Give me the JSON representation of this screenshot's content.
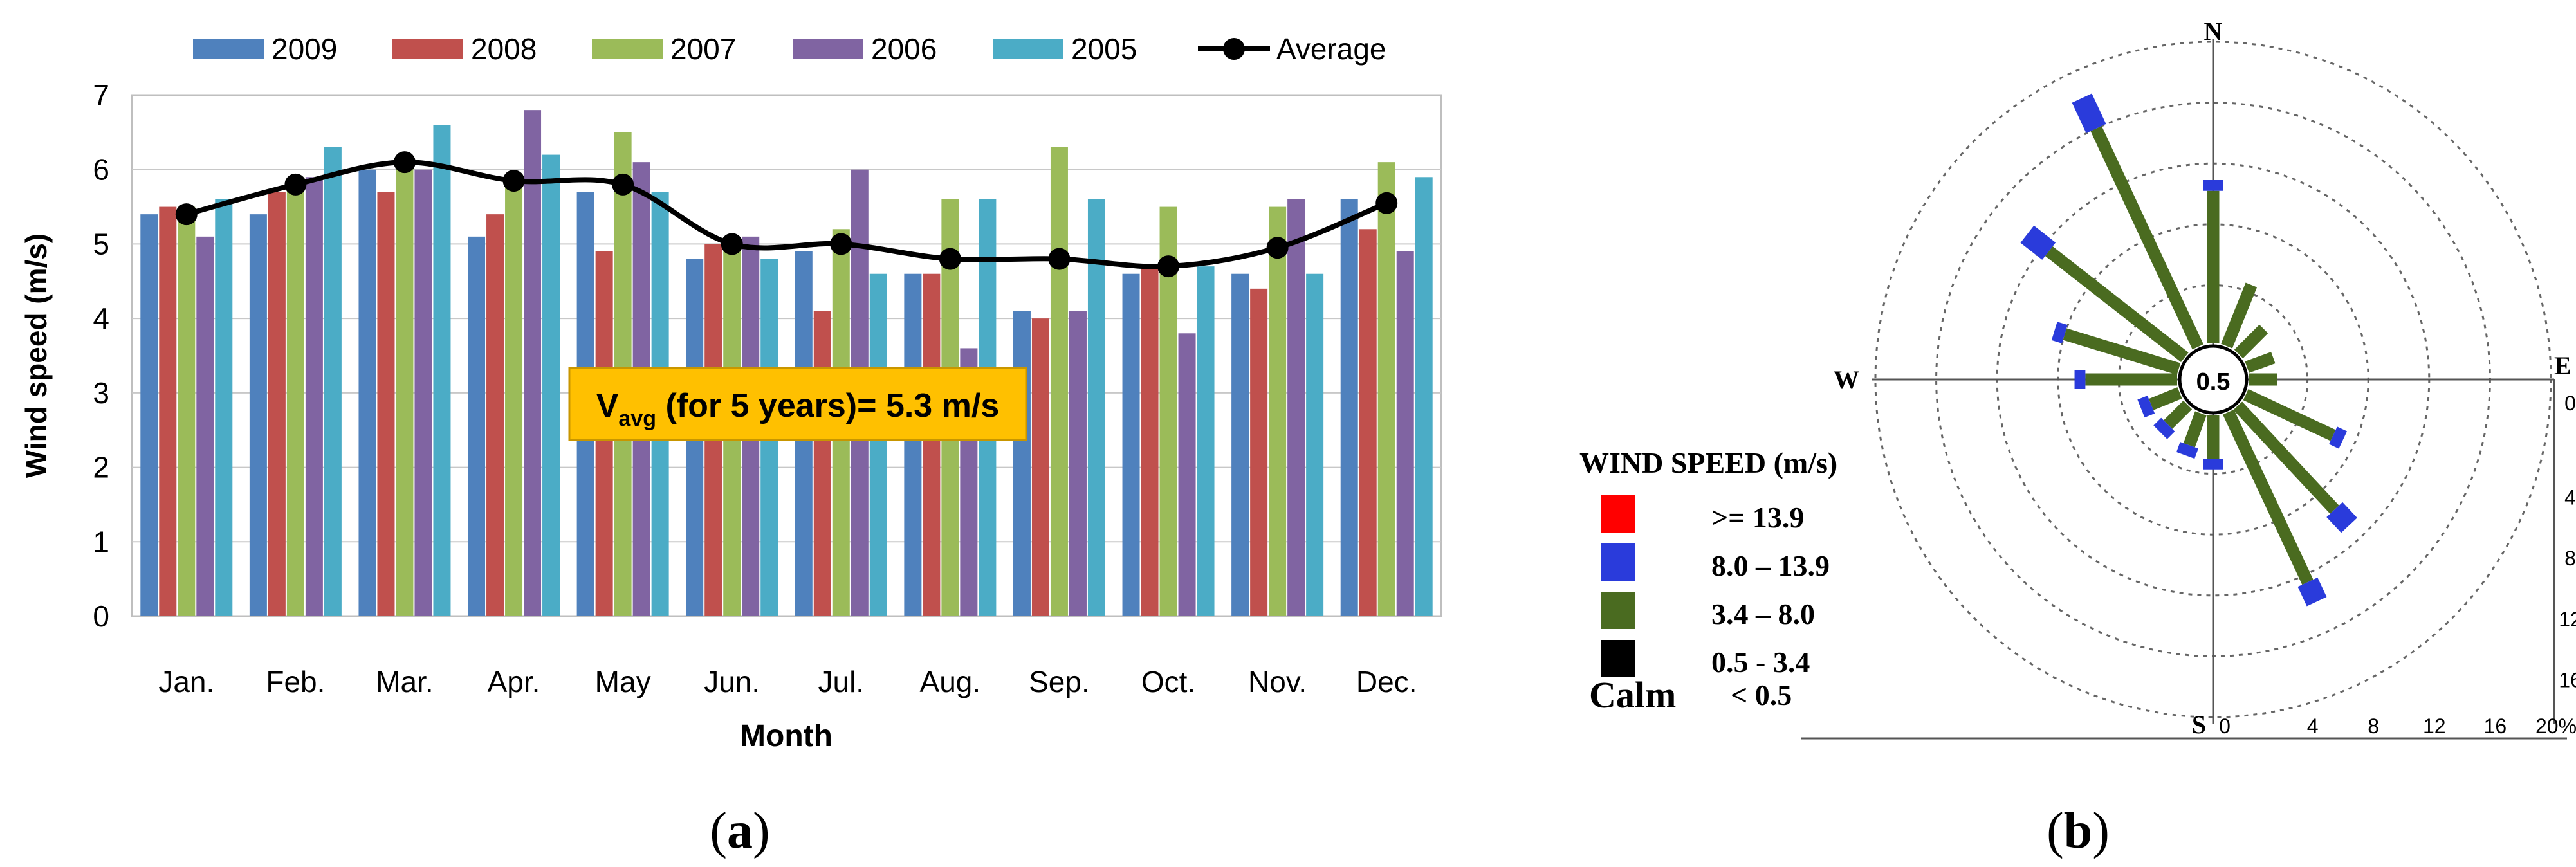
{
  "panel_labels": {
    "a": "a",
    "b": "b"
  },
  "chart_data": [
    {
      "type": "bar",
      "id": "monthly-wind-speed",
      "title": "",
      "xlabel": "Month",
      "ylabel": "Wind speed (m/s)",
      "ylim": [
        0,
        7
      ],
      "yticks": [
        "0",
        "1",
        "2",
        "3",
        "4",
        "5",
        "6",
        "7"
      ],
      "grid": true,
      "legend_position": "top",
      "categories": [
        "Jan.",
        "Feb.",
        "Mar.",
        "Apr.",
        "May",
        "Jun.",
        "Jul.",
        "Aug.",
        "Sep.",
        "Oct.",
        "Nov.",
        "Dec."
      ],
      "series": [
        {
          "name": "2009",
          "color": "#4F81BD",
          "values": [
            5.4,
            5.4,
            6.0,
            5.1,
            5.7,
            4.8,
            4.9,
            4.6,
            4.1,
            4.6,
            4.6,
            5.6
          ]
        },
        {
          "name": "2008",
          "color": "#C0504D",
          "values": [
            5.5,
            5.7,
            5.7,
            5.4,
            4.9,
            5.0,
            4.1,
            4.6,
            4.0,
            4.7,
            4.4,
            5.2
          ]
        },
        {
          "name": "2007",
          "color": "#9BBB59",
          "values": [
            5.5,
            5.8,
            6.1,
            5.8,
            6.5,
            4.9,
            5.2,
            5.6,
            6.3,
            5.5,
            5.5,
            6.1
          ]
        },
        {
          "name": "2006",
          "color": "#8064A2",
          "values": [
            5.1,
            5.9,
            6.0,
            6.8,
            6.1,
            5.1,
            6.0,
            3.6,
            4.1,
            3.8,
            5.6,
            4.9
          ]
        },
        {
          "name": "2005",
          "color": "#4BACC6",
          "values": [
            5.6,
            6.3,
            6.6,
            6.2,
            5.7,
            4.8,
            4.6,
            5.6,
            5.6,
            4.7,
            4.6,
            5.9
          ]
        }
      ],
      "average": {
        "name": "Average",
        "color": "#000000",
        "values": [
          5.4,
          5.8,
          6.1,
          5.85,
          5.8,
          5.0,
          5.0,
          4.8,
          4.8,
          4.7,
          4.95,
          5.55
        ]
      },
      "annotation": {
        "prefix": "V",
        "subscript": "avg",
        "suffix": " (for 5 years)= 5.3 m/s",
        "background": "#FFC000"
      }
    },
    {
      "type": "wind-rose",
      "id": "wind-rose",
      "directions": [
        "N",
        "S",
        "E",
        "W"
      ],
      "center_label": "0.5",
      "radial_axis_labels": [
        "0",
        "4",
        "8",
        "12",
        "16"
      ],
      "bottom_axis_labels": [
        "0",
        "4",
        "8",
        "12",
        "16",
        "20%"
      ],
      "radial_max": 20,
      "ring_count": 5,
      "legend": {
        "title": "WIND SPEED (m/s)",
        "items": [
          {
            "label": ">= 13.9",
            "color": "#FF0000"
          },
          {
            "label": "8.0 – 13.9",
            "color": "#2A3BDB"
          },
          {
            "label": "3.4 – 8.0",
            "color": "#4A6B20"
          },
          {
            "label": "0.5 - 3.4",
            "color": "#000000"
          }
        ],
        "calm_label": "Calm",
        "calm_value": "< 0.5"
      },
      "spokes": [
        {
          "angle": -25,
          "green": 16.0,
          "blue": 2.0
        },
        {
          "angle": -52,
          "green": 11.5,
          "blue": 1.6
        },
        {
          "angle": 0,
          "green": 10.2,
          "blue": 0.5
        },
        {
          "angle": -73,
          "green": 8.0,
          "blue": 0.5
        },
        {
          "angle": -90,
          "green": 6.2,
          "blue": 0.5
        },
        {
          "angle": 155,
          "green": 12.5,
          "blue": 1.2
        },
        {
          "angle": 137,
          "green": 9.5,
          "blue": 1.2
        },
        {
          "angle": 115,
          "green": 6.5,
          "blue": 0.5
        },
        {
          "angle": 22,
          "green": 4.5,
          "blue": 0
        },
        {
          "angle": 45,
          "green": 2.5,
          "blue": 0
        },
        {
          "angle": 70,
          "green": 2.0,
          "blue": 0
        },
        {
          "angle": 90,
          "green": 2.0,
          "blue": 0
        },
        {
          "angle": 180,
          "green": 3.0,
          "blue": 0.5
        },
        {
          "angle": -160,
          "green": 2.4,
          "blue": 0.5
        },
        {
          "angle": -135,
          "green": 2.0,
          "blue": 0.5
        },
        {
          "angle": -112,
          "green": 2.2,
          "blue": 0.5
        }
      ]
    }
  ]
}
